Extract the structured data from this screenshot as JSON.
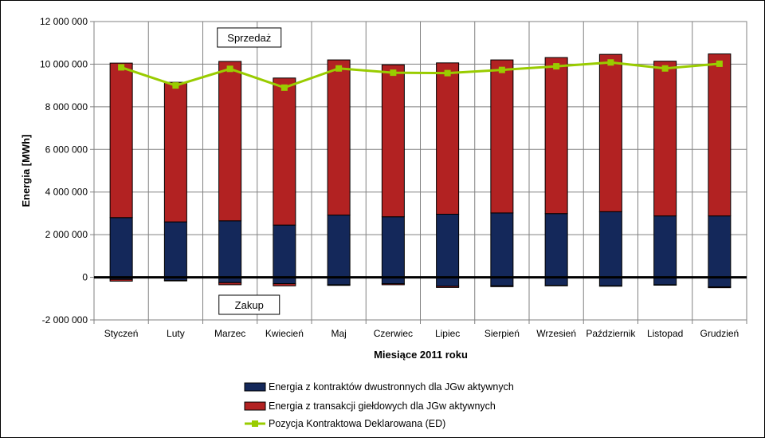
{
  "chart_data": {
    "type": "bar",
    "xlabel": "Miesiące 2011  roku",
    "ylabel": "Energia  [MWh]",
    "ylim": [
      -2000000,
      12000000
    ],
    "y_ticks": [
      12000000,
      10000000,
      8000000,
      6000000,
      4000000,
      2000000,
      0,
      -2000000
    ],
    "y_tick_labels": [
      "12 000 000",
      "10 000 000",
      "8 000 000",
      "6 000 000",
      "4 000 000",
      "2 000 000",
      "0",
      "-2 000 000"
    ],
    "categories": [
      "Styczeń",
      "Luty",
      "Marzec",
      "Kwiecień",
      "Maj",
      "Czerwiec",
      "Lipiec",
      "Sierpień",
      "Wrzesień",
      "Październik",
      "Listopad",
      "Grudzień"
    ],
    "grid": true,
    "legend_position": "bottom",
    "annotations": [
      "Sprzedaż",
      "Zakup"
    ],
    "series": [
      {
        "name": "Energia z kontraktów dwustronnych dla JGw aktywnych",
        "color": "#14285a",
        "positive": [
          2800000,
          2600000,
          2650000,
          2450000,
          2920000,
          2840000,
          2960000,
          3020000,
          2990000,
          3080000,
          2880000,
          2880000
        ],
        "negative": [
          -100000,
          -150000,
          -250000,
          -300000,
          -350000,
          -300000,
          -420000,
          -400000,
          -380000,
          -400000,
          -350000,
          -450000
        ]
      },
      {
        "name": "Energia z transakcji giełdowych dla JGw aktywnych",
        "color": "#b22222",
        "positive": [
          7250000,
          6550000,
          7480000,
          6900000,
          7280000,
          7130000,
          7100000,
          7180000,
          7320000,
          7380000,
          7260000,
          7600000
        ],
        "negative": [
          -80000,
          -20000,
          -100000,
          -100000,
          -30000,
          -50000,
          -60000,
          -40000,
          -20000,
          -20000,
          -20000,
          -40000
        ]
      },
      {
        "name": "Pozycja Kontraktowa Deklarowana (ED)",
        "type": "line",
        "color": "#99cc00",
        "values": [
          9850000,
          9000000,
          9780000,
          8900000,
          9800000,
          9600000,
          9580000,
          9730000,
          9900000,
          10080000,
          9800000,
          10020000
        ]
      }
    ]
  }
}
